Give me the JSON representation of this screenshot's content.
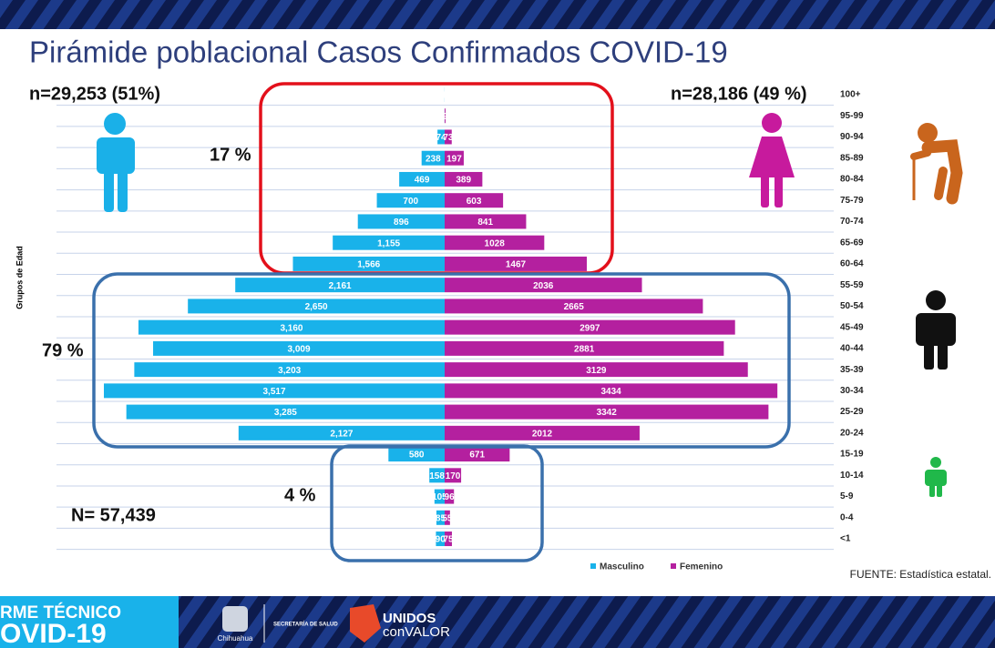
{
  "chart_data": {
    "type": "pyramid",
    "title": "Pirámide poblacional Casos Confirmados COVID-19",
    "y_label": "Grupos de Edad",
    "categories": [
      "100+",
      "95-99",
      "90-94",
      "85-89",
      "80-84",
      "75-79",
      "70-74",
      "65-69",
      "60-64",
      "55-59",
      "50-54",
      "45-49",
      "40-44",
      "35-39",
      "30-34",
      "25-29",
      "20-24",
      "15-19",
      "10-14",
      "5-9",
      "0-4",
      "<1"
    ],
    "series": [
      {
        "name": "Masculino",
        "color": "#19b2ea",
        "values": [
          1,
          1,
          74,
          238,
          469,
          700,
          896,
          1155,
          1566,
          2161,
          2650,
          3160,
          3009,
          3203,
          3517,
          3285,
          2127,
          580,
          158,
          105,
          85,
          90
        ],
        "value_labels": [
          "1",
          "1",
          "74",
          "238",
          "469",
          "700",
          "896",
          "1,155",
          "1,566",
          "2,161",
          "2,650",
          "3,160",
          "3,009",
          "3,203",
          "3,517",
          "3,285",
          "2,127",
          "580",
          "158",
          "105",
          "85",
          "90"
        ]
      },
      {
        "name": "Femenino",
        "color": "#b4209f",
        "values": [
          0,
          9,
          73,
          197,
          389,
          603,
          841,
          1028,
          1467,
          2036,
          2665,
          2997,
          2881,
          3129,
          3434,
          3342,
          2012,
          671,
          170,
          96,
          55,
          75
        ]
      }
    ],
    "annotations": [
      "n=29,253 (51%)",
      "n=28,186 (49 %)",
      "17 %",
      "79 %",
      "4 %",
      "N= 57,439"
    ],
    "source": "FUENTE:  Estadística estatal."
  },
  "footer": {
    "report_line1": "RME TÉCNICO",
    "report_line2": "OVID-19",
    "state": "Chihuahua",
    "ministry": "SECRETARÍA DE SALUD",
    "slogan1": "UNIDOS",
    "slogan2": "conVALOR"
  }
}
